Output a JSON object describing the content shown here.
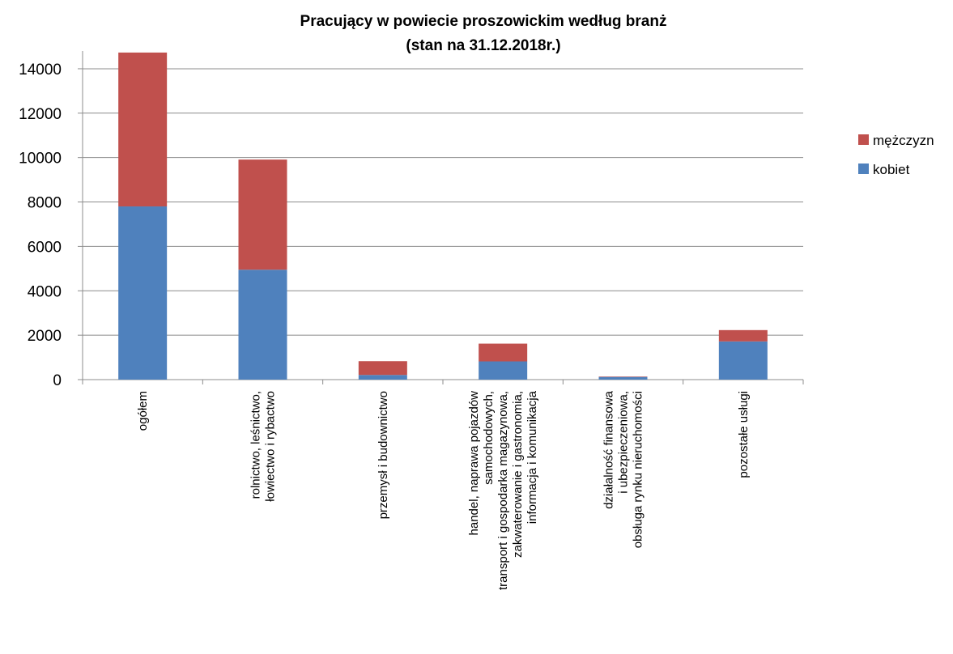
{
  "chart_data": {
    "type": "bar",
    "stacked": true,
    "title": [
      "Pracujący w powiecie proszowickim według branż",
      "(stan na 31.12.2018r.)"
    ],
    "categories": [
      [
        "ogółem"
      ],
      [
        "rolnictwo, leśnictwo,",
        "łowiectwo i rybactwo"
      ],
      [
        "przemysł i budownictwo"
      ],
      [
        "handel, naprawa pojazdów",
        "samochodowych,",
        "transport i gospodarka magazynowa,",
        "zakwaterowanie i gastronomia,",
        "informacja i komunikacja"
      ],
      [
        "działalność finansowa",
        "i ubezpieczeniowa,",
        "obsługa rynku nieruchomości"
      ],
      [
        "pozostałe usługi"
      ]
    ],
    "series": [
      {
        "name": "kobiet",
        "color": "#4f81bd",
        "values": [
          7800,
          4950,
          210,
          820,
          120,
          1720
        ]
      },
      {
        "name": "mężczyzn",
        "color": "#c0504d",
        "values": [
          6930,
          4960,
          620,
          800,
          20,
          510
        ]
      }
    ],
    "legend_order": [
      1,
      0
    ],
    "ylim": [
      0,
      14800
    ],
    "yticks": [
      "0",
      "2000",
      "4000",
      "6000",
      "8000",
      "10000",
      "12000",
      "14000"
    ],
    "grid": true,
    "legend_position": "right"
  }
}
